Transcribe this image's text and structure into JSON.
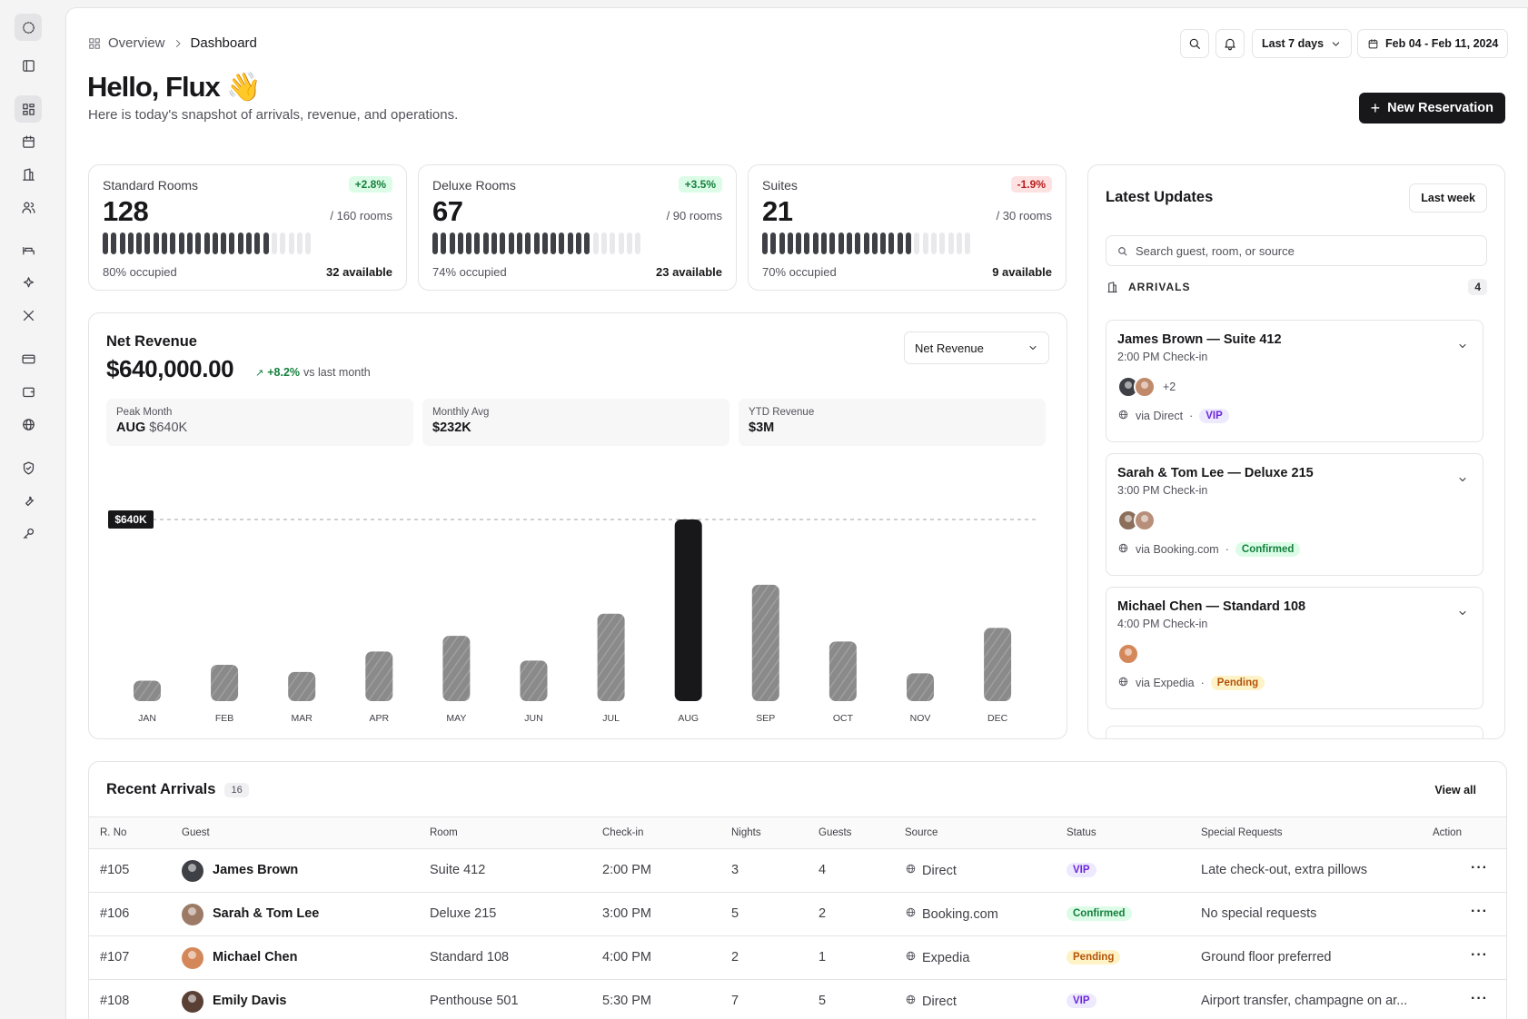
{
  "breadcrumb": {
    "parent": "Overview",
    "current": "Dashboard"
  },
  "header": {
    "range_label": "Last 7 days",
    "date_range": "Feb 04 - Feb 11, 2024",
    "greeting": "Hello, Flux 👋",
    "subtitle": "Here is today's snapshot of arrivals, revenue, and operations.",
    "new_reservation": "New Reservation"
  },
  "stats": [
    {
      "label": "Standard Rooms",
      "change": "+2.8%",
      "trend": "up",
      "value": "128",
      "total": "/ 160 rooms",
      "occupied_pct": 0.8,
      "occupied_label": "80% occupied",
      "available": "32 available"
    },
    {
      "label": "Deluxe Rooms",
      "change": "+3.5%",
      "trend": "up",
      "value": "67",
      "total": "/ 90 rooms",
      "occupied_pct": 0.74,
      "occupied_label": "74% occupied",
      "available": "23 available"
    },
    {
      "label": "Suites",
      "change": "-1.9%",
      "trend": "down",
      "value": "21",
      "total": "/ 30 rooms",
      "occupied_pct": 0.7,
      "occupied_label": "70% occupied",
      "available": "9 available"
    }
  ],
  "revenue": {
    "title": "Net Revenue",
    "value": "$640,000.00",
    "change": "+8.2%",
    "change_suffix": "vs last month",
    "select_value": "Net Revenue",
    "peak_label": "Peak Month",
    "peak_month": "AUG",
    "peak_value": "$640K",
    "avg_label": "Monthly Avg",
    "avg_value": "$232K",
    "ytd_label": "YTD Revenue",
    "ytd_value": "$3M"
  },
  "chart_data": {
    "type": "bar",
    "categories": [
      "JAN",
      "FEB",
      "MAR",
      "APR",
      "MAY",
      "JUN",
      "JUL",
      "AUG",
      "SEP",
      "OCT",
      "NOV",
      "DEC"
    ],
    "values": [
      72,
      128,
      103,
      175,
      230,
      143,
      308,
      640,
      410,
      210,
      98,
      258
    ],
    "highlight": "AUG",
    "reference_label": "$640K",
    "reference_value": 640,
    "ylim": [
      0,
      640
    ],
    "colors": {
      "bar": "#8a8a8a",
      "highlight": "#18181b"
    }
  },
  "updates": {
    "title": "Latest Updates",
    "period": "Last week",
    "search_placeholder": "Search guest, room, or source",
    "arrivals_label": "ARRIVALS",
    "arrivals_count": "4",
    "items": [
      {
        "name": "James Brown — Suite 412",
        "time": "2:00 PM Check-in",
        "extra": "+2",
        "source": "via Direct",
        "tag": "VIP",
        "tag_type": "vip",
        "avatars": [
          "#3f3f46",
          "#c08a6a"
        ]
      },
      {
        "name": "Sarah & Tom Lee — Deluxe 215",
        "time": "3:00 PM Check-in",
        "extra": "",
        "source": "via Booking.com",
        "tag": "Confirmed",
        "tag_type": "conf",
        "avatars": [
          "#8b6f5a",
          "#b88f7a"
        ]
      },
      {
        "name": "Michael Chen — Standard 108",
        "time": "4:00 PM Check-in",
        "extra": "",
        "source": "via Expedia",
        "tag": "Pending",
        "tag_type": "pend",
        "avatars": [
          "#d4885a"
        ]
      }
    ]
  },
  "recent": {
    "title": "Recent Arrivals",
    "count": "16",
    "view_all": "View all",
    "columns": [
      "R. No",
      "Guest",
      "Room",
      "Check-in",
      "Nights",
      "Guests",
      "Source",
      "Status",
      "Special Requests",
      "Action"
    ],
    "rows": [
      {
        "no": "#105",
        "guest": "James Brown",
        "room": "Suite 412",
        "checkin": "2:00 PM",
        "nights": "3",
        "guests": "4",
        "source": "Direct",
        "status": "VIP",
        "status_type": "vip",
        "requests": "Late check-out, extra pillows",
        "avatar": "#3f3f46"
      },
      {
        "no": "#106",
        "guest": "Sarah & Tom Lee",
        "room": "Deluxe 215",
        "checkin": "3:00 PM",
        "nights": "5",
        "guests": "2",
        "source": "Booking.com",
        "status": "Confirmed",
        "status_type": "conf",
        "requests": "No special requests",
        "avatar": "#9c7a66"
      },
      {
        "no": "#107",
        "guest": "Michael Chen",
        "room": "Standard 108",
        "checkin": "4:00 PM",
        "nights": "2",
        "guests": "1",
        "source": "Expedia",
        "status": "Pending",
        "status_type": "pend",
        "requests": "Ground floor preferred",
        "avatar": "#d4885a"
      },
      {
        "no": "#108",
        "guest": "Emily Davis",
        "room": "Penthouse 501",
        "checkin": "5:30 PM",
        "nights": "7",
        "guests": "5",
        "source": "Direct",
        "status": "VIP",
        "status_type": "vip",
        "requests": "Airport transfer, champagne on ar...",
        "avatar": "#5a3f35"
      }
    ]
  }
}
